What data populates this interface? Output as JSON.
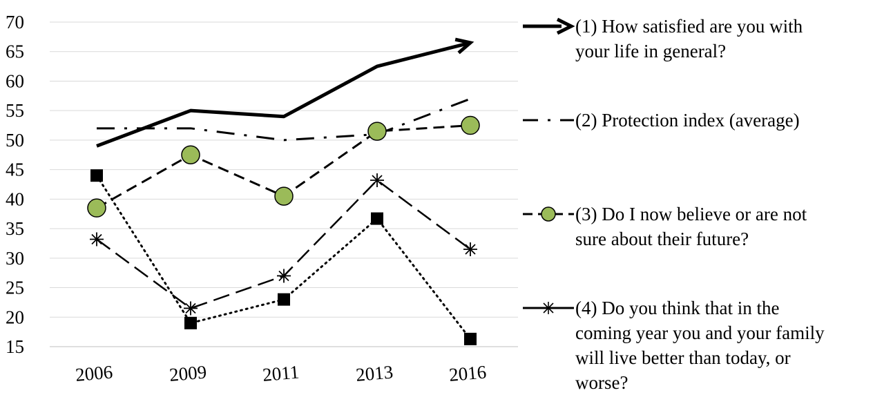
{
  "chart_data": {
    "type": "line",
    "categories": [
      "2006",
      "2009",
      "2011",
      "2013",
      "2016"
    ],
    "ylim": [
      15,
      70
    ],
    "yticks": [
      15,
      20,
      25,
      30,
      35,
      40,
      45,
      50,
      55,
      60,
      65,
      70
    ],
    "grid": true,
    "legend_position": "right",
    "series": [
      {
        "name": "(1) How satisfied are you with\nyour life in general?",
        "values": [
          49,
          55,
          54,
          62.5,
          66.5
        ],
        "style": "arrow-solid",
        "color": "#000000"
      },
      {
        "name": "(2) Protection index (average)",
        "values": [
          52,
          52,
          50,
          51,
          57
        ],
        "style": "dash-dot",
        "color": "#000000"
      },
      {
        "name": "(3) Do I now believe or are not\nsure about their future?",
        "values": [
          38.5,
          47.5,
          40.5,
          51.5,
          52.5
        ],
        "style": "dashed-circle",
        "color": "#000000",
        "marker_fill": "#9bbb59"
      },
      {
        "name": "(4) Do you think that in the\ncoming year you and your family\nwill live better than today, or\nworse?",
        "values": [
          33.2,
          21.5,
          27,
          43.2,
          31.5
        ],
        "style": "longdash-asterisk",
        "color": "#000000"
      },
      {
        "name": "",
        "values": [
          44,
          19,
          23,
          36.7,
          16.3
        ],
        "style": "dotted-square",
        "color": "#000000"
      }
    ]
  }
}
